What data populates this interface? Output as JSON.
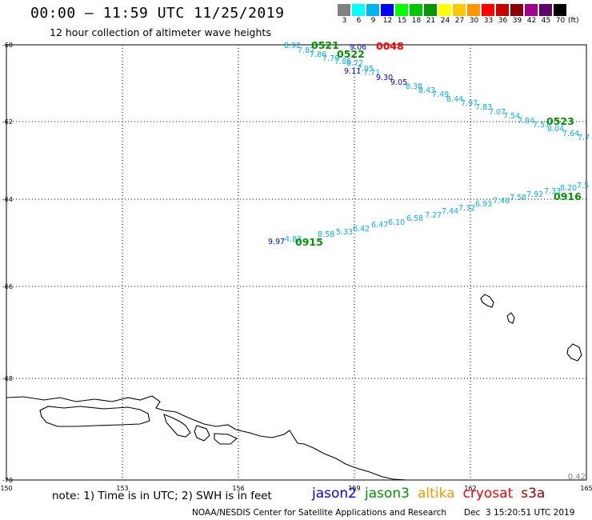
{
  "header": {
    "title": "00:00 – 11:59 UTC 11/25/2019",
    "subtitle": "12 hour collection of altimeter wave heights"
  },
  "legend": {
    "unit": "(ft)",
    "bins": [
      {
        "label": "3",
        "color": "#808080"
      },
      {
        "label": "6",
        "color": "#00ffff"
      },
      {
        "label": "9",
        "color": "#00b4f0"
      },
      {
        "label": "12",
        "color": "#0000ff"
      },
      {
        "label": "15",
        "color": "#00ff00"
      },
      {
        "label": "18",
        "color": "#00c800"
      },
      {
        "label": "21",
        "color": "#009600"
      },
      {
        "label": "24",
        "color": "#ffff00"
      },
      {
        "label": "27",
        "color": "#ffc800"
      },
      {
        "label": "30",
        "color": "#ff9600"
      },
      {
        "label": "33",
        "color": "#ff0000"
      },
      {
        "label": "36",
        "color": "#c80000"
      },
      {
        "label": "39",
        "color": "#8b0000"
      },
      {
        "label": "42",
        "color": "#a0008c"
      },
      {
        "label": "45",
        "color": "#64006e"
      },
      {
        "label": "70",
        "color": "#000000"
      }
    ]
  },
  "map": {
    "lon_ticks": [
      "150",
      "153",
      "156",
      "159",
      "162",
      "165"
    ],
    "lat_ticks": [
      "-60",
      "-62",
      "-64",
      "-66",
      "-68",
      "-70"
    ],
    "corner_value": "0.42",
    "track_labels": [
      {
        "text": "0521",
        "color": "#009600"
      },
      {
        "text": "0048",
        "color": "#ff0000"
      },
      {
        "text": "0522",
        "color": "#009600"
      },
      {
        "text": "0523",
        "color": "#009600"
      },
      {
        "text": "0916",
        "color": "#009600"
      },
      {
        "text": "0915",
        "color": "#009600"
      }
    ],
    "swh_colors": {
      "light": "#00b4f0",
      "dark": "#0000ff"
    },
    "track_a_values": [
      "8.92",
      "7.87",
      "7.86",
      "7.79",
      "7.86",
      "9.06",
      "8.72",
      "7.95",
      "9.11",
      "7.71",
      "9.30",
      "9.05",
      "8.38",
      "8.43",
      "7.49",
      "8.44",
      "7.97",
      "7.83",
      "7.07",
      "7.54",
      "7.84",
      "7.57",
      "8.04",
      "7.64",
      "7.7"
    ],
    "track_b_values": [
      "9.97",
      "4.82",
      "8.58",
      "5.33",
      "6.42",
      "6.47",
      "6.10",
      "6.58",
      "7.27",
      "7.44",
      "7.32",
      "6.93",
      "7.46",
      "7.58",
      "7.92",
      "7.33",
      "8.20",
      "7.5"
    ]
  },
  "footer": {
    "note": "note: 1) Time is in UTC; 2) SWH is in feet",
    "satellites": [
      {
        "name": "jason2",
        "color": "#0000ff"
      },
      {
        "name": "jason3",
        "color": "#009600"
      },
      {
        "name": "altika",
        "color": "#ff9600"
      },
      {
        "name": "cryosat",
        "color": "#ff0000"
      },
      {
        "name": "s3a",
        "color": "#a00000"
      }
    ],
    "credit": "NOAA/NESDIS Center for Satellite Applications and Research",
    "timestamp": "Dec  3 15:20:51 UTC 2019"
  }
}
